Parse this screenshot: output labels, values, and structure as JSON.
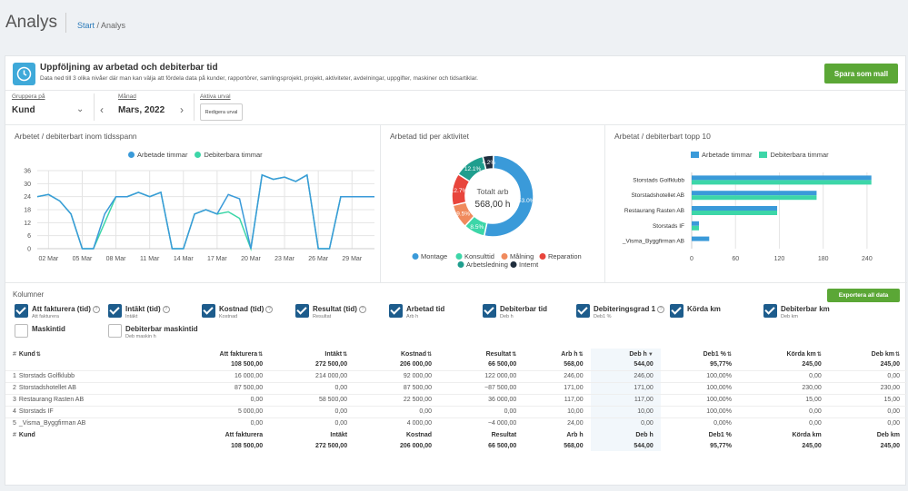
{
  "page": {
    "title": "Analys",
    "breadcrumb_home": "Start",
    "breadcrumb_sep": " / ",
    "breadcrumb_current": "Analys"
  },
  "header": {
    "title": "Uppföljning av arbetad och debiterbar tid",
    "subtitle": "Data ned till 3 olika nivåer där man kan välja att fördela data på kunder, rapportörer, samlingsprojekt, projekt, aktiviteter, avdelningar, uppgifter, maskiner och tidsartiklar.",
    "save_label": "Spara som mall"
  },
  "filters": {
    "group_label": "Gruppera på",
    "group_value": "Kund",
    "month_label": "Månad",
    "month_value": "Mars, 2022",
    "active_label": "Aktiva urval",
    "edit_label": "Redigera urval"
  },
  "colors": {
    "worked": "#3a9ad9",
    "billable": "#3dd6a8",
    "green": "#5ba736"
  },
  "line_chart": {
    "title": "Arbetet / debiterbart inom tidsspann",
    "legend": [
      "Arbetade timmar",
      "Debiterbara timmar"
    ],
    "y_ticks": [
      "36",
      "30",
      "24",
      "18",
      "12",
      "6",
      "0"
    ],
    "x_ticks": [
      "02 Mar",
      "05 Mar",
      "08 Mar",
      "11 Mar",
      "14 Mar",
      "17 Mar",
      "20 Mar",
      "23 Mar",
      "26 Mar",
      "29 Mar"
    ]
  },
  "donut": {
    "title": "Arbetad tid per aktivitet",
    "center_label": "Totalt arb",
    "center_value": "568,00 h",
    "slices": [
      {
        "name": "Montage",
        "pct": 53.0,
        "label": "53.0%",
        "color": "#3a9ad9"
      },
      {
        "name": "Konsulttid",
        "pct": 8.5,
        "label": "8.5%",
        "color": "#3dd6a8"
      },
      {
        "name": "Målning",
        "pct": 9.5,
        "label": "9.5%",
        "color": "#f08a5d"
      },
      {
        "name": "Reparation",
        "pct": 12.7,
        "label": "12.7%",
        "color": "#e8453c"
      },
      {
        "name": "Arbetsledning",
        "pct": 12.1,
        "label": "12.1%",
        "color": "#1f9e8e"
      },
      {
        "name": "Internt",
        "pct": 4.2,
        "label": "4.2%",
        "color": "#1f2d3d"
      }
    ]
  },
  "bar_chart": {
    "title": "Arbetat / debiterbart topp 10",
    "legend": [
      "Arbetade timmar",
      "Debiterbara timmar"
    ],
    "x_ticks": [
      "0",
      "60",
      "120",
      "180",
      "240"
    ]
  },
  "columns": {
    "title": "Kolumner",
    "export_label": "Exportera all data",
    "items": [
      {
        "label": "Att fakturera (tid)",
        "sub": "Att fakturera",
        "checked": true,
        "help": true
      },
      {
        "label": "Intäkt (tid)",
        "sub": "Intäkt",
        "checked": true,
        "help": true
      },
      {
        "label": "Kostnad (tid)",
        "sub": "Kostnad",
        "checked": true,
        "help": true
      },
      {
        "label": "Resultat (tid)",
        "sub": "Resultat",
        "checked": true,
        "help": true
      },
      {
        "label": "Arbetad tid",
        "sub": "Arb h",
        "checked": true,
        "help": false
      },
      {
        "label": "Debiterbar tid",
        "sub": "Deb h",
        "checked": true,
        "help": false
      },
      {
        "label": "Debiteringsgrad 1",
        "sub": "Deb1 %",
        "checked": true,
        "help": true
      },
      {
        "label": "Körda km",
        "sub": "",
        "checked": true,
        "help": false
      },
      {
        "label": "Debiterbar km",
        "sub": "Deb km",
        "checked": true,
        "help": false
      },
      {
        "label": "Maskintid",
        "sub": "",
        "checked": false,
        "help": false
      },
      {
        "label": "Debiterbar maskintid",
        "sub": "Deb maskin h",
        "checked": false,
        "help": false
      }
    ]
  },
  "table": {
    "index_header": "#",
    "headers": [
      "Kund",
      "Att fakturera",
      "Intäkt",
      "Kostnad",
      "Resultat",
      "Arb h",
      "Deb h",
      "Deb1 %",
      "Körda km",
      "Deb km"
    ],
    "totals": [
      "",
      "108 500,00",
      "272 500,00",
      "206 000,00",
      "66 500,00",
      "568,00",
      "544,00",
      "95,77%",
      "245,00",
      "245,00"
    ],
    "rows": [
      {
        "idx": "1",
        "cells": [
          "Storstads Golfklubb",
          "16 000,00",
          "214 000,00",
          "92 000,00",
          "122 000,00",
          "246,00",
          "246,00",
          "100,00%",
          "0,00",
          "0,00"
        ]
      },
      {
        "idx": "2",
        "cells": [
          "Storstadshotellet AB",
          "87 500,00",
          "0,00",
          "87 500,00",
          "−87 500,00",
          "171,00",
          "171,00",
          "100,00%",
          "230,00",
          "230,00"
        ]
      },
      {
        "idx": "3",
        "cells": [
          "Restaurang Rasten AB",
          "0,00",
          "58 500,00",
          "22 500,00",
          "36 000,00",
          "117,00",
          "117,00",
          "100,00%",
          "15,00",
          "15,00"
        ]
      },
      {
        "idx": "4",
        "cells": [
          "Storstads IF",
          "5 000,00",
          "0,00",
          "0,00",
          "0,00",
          "10,00",
          "10,00",
          "100,00%",
          "0,00",
          "0,00"
        ]
      },
      {
        "idx": "5",
        "cells": [
          "_Visma_Byggfirman AB",
          "0,00",
          "0,00",
          "4 000,00",
          "−4 000,00",
          "24,00",
          "0,00",
          "0,00%",
          "0,00",
          "0,00"
        ]
      }
    ]
  },
  "chart_data": [
    {
      "type": "line",
      "title": "Arbetet / debiterbart inom tidsspann",
      "x": [
        "01 Mar",
        "02 Mar",
        "03 Mar",
        "04 Mar",
        "05 Mar",
        "06 Mar",
        "07 Mar",
        "08 Mar",
        "09 Mar",
        "10 Mar",
        "11 Mar",
        "12 Mar",
        "13 Mar",
        "14 Mar",
        "15 Mar",
        "16 Mar",
        "17 Mar",
        "18 Mar",
        "19 Mar",
        "20 Mar",
        "21 Mar",
        "22 Mar",
        "23 Mar",
        "24 Mar",
        "25 Mar",
        "26 Mar",
        "27 Mar",
        "28 Mar",
        "29 Mar",
        "30 Mar",
        "31 Mar"
      ],
      "ylim": [
        0,
        36
      ],
      "series": [
        {
          "name": "Arbetade timmar",
          "values": [
            24,
            25,
            22,
            16,
            0,
            0,
            16,
            24,
            24,
            26,
            24,
            26,
            0,
            0,
            16,
            18,
            16,
            25,
            23,
            0,
            34,
            32,
            33,
            31,
            34,
            0,
            0,
            24,
            24,
            24,
            24
          ]
        },
        {
          "name": "Debiterbara timmar",
          "values": [
            24,
            25,
            22,
            16,
            0,
            0,
            12,
            24,
            24,
            26,
            24,
            26,
            0,
            0,
            16,
            18,
            16,
            17,
            14,
            0,
            34,
            32,
            33,
            31,
            34,
            0,
            0,
            24,
            24,
            24,
            24
          ]
        }
      ]
    },
    {
      "type": "pie",
      "title": "Arbetad tid per aktivitet",
      "categories": [
        "Montage",
        "Konsulttid",
        "Målning",
        "Reparation",
        "Arbetsledning",
        "Internt"
      ],
      "values": [
        53.0,
        8.5,
        9.5,
        12.7,
        12.1,
        4.2
      ]
    },
    {
      "type": "bar",
      "title": "Arbetat / debiterbart topp 10",
      "categories": [
        "Storstads Golfklubb",
        "Storstadshotellet AB",
        "Restaurang Rasten AB",
        "Storstads IF",
        "_Visma_Byggfirman AB"
      ],
      "categories_short": [
        "Storstads Golfklubb",
        "Storstadshotellet AB",
        "Restaurang Rasten AB",
        "Storstads IF",
        "_Visma_Byggfirman AB"
      ],
      "xlim": [
        0,
        270
      ],
      "series": [
        {
          "name": "Arbetade timmar",
          "values": [
            246,
            171,
            117,
            10,
            24
          ]
        },
        {
          "name": "Debiterbara timmar",
          "values": [
            246,
            171,
            117,
            10,
            0
          ]
        }
      ]
    }
  ]
}
